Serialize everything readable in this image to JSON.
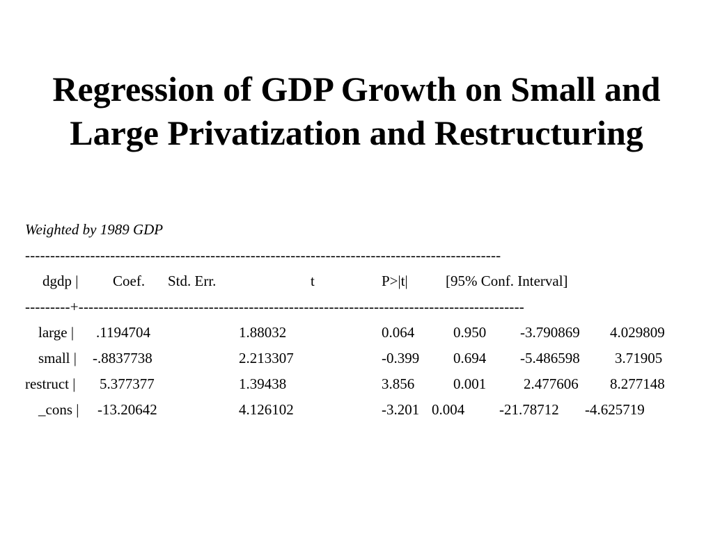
{
  "slide": {
    "title_line1": "Regression of GDP Growth on Small and",
    "title_line2": "Large Privatization and Restructuring",
    "subtitle": "Weighted by 1989 GDP",
    "rule_top": "-----------------------------------------------------------------------------------------------",
    "rule_mid": "---------+-----------------------------------------------------------------------------------------",
    "header": {
      "var": "dgdp |",
      "coef": "Coef.",
      "se": "Std. Err.",
      "t": "t",
      "p": "P>|t|",
      "ci": "[95% Conf. Interval]"
    },
    "rows": [
      {
        "var": "large |",
        "coef": ".1194704",
        "se": "1.88032",
        "t": "0.064",
        "p": "0.950",
        "ci_lo": "-3.790869",
        "ci_hi": "4.029809"
      },
      {
        "var": "small |",
        "coef": "-.8837738",
        "se": "2.213307",
        "t": "-0.399",
        "p": "0.694",
        "ci_lo": "-5.486598",
        "ci_hi": "3.71905"
      },
      {
        "var": "restruct |",
        "coef": "5.377377",
        "se": "1.39438",
        "t": "3.856",
        "p": "0.001",
        "ci_lo": "2.477606",
        "ci_hi": "8.277148"
      },
      {
        "var": "_cons |",
        "coef": "-13.20642",
        "se": "4.126102",
        "t": "-3.201",
        "p": "0.004",
        "ci_lo": "-21.78712",
        "ci_hi": "-4.625719"
      }
    ]
  }
}
